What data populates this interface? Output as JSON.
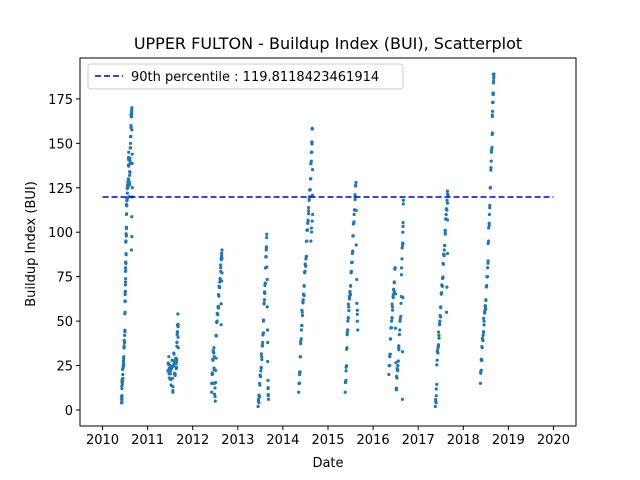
{
  "chart_data": {
    "type": "scatter",
    "title": "UPPER FULTON - Buildup Index (BUI), Scatterplot",
    "xlabel": "Date",
    "ylabel": "Buildup Index (BUI)",
    "xlim": [
      2009.5,
      2020.5
    ],
    "ylim": [
      -9,
      198
    ],
    "xticks": [
      2010,
      2011,
      2012,
      2013,
      2014,
      2015,
      2016,
      2017,
      2018,
      2019,
      2020
    ],
    "yticks": [
      0,
      25,
      50,
      75,
      100,
      125,
      150,
      175
    ],
    "grid": false,
    "legend_placement": "top-left",
    "colors": {
      "points": "#1f77b4",
      "percentile_line": "#0000cc"
    },
    "percentile": {
      "label": "90th percentile : 119.8118423461914",
      "value": 119.8118423461914,
      "x_start": 2010.0,
      "x_end": 2020.0
    },
    "series": [
      {
        "values_by_season": [
          {
            "year": 2010,
            "points": [
              [
                2010.42,
                4
              ],
              [
                2010.43,
                8
              ],
              [
                2010.43,
                12
              ],
              [
                2010.44,
                17
              ],
              [
                2010.45,
                20
              ],
              [
                2010.46,
                25
              ],
              [
                2010.47,
                30
              ],
              [
                2010.48,
                35
              ],
              [
                2010.49,
                42
              ],
              [
                2010.5,
                55
              ],
              [
                2010.5,
                65
              ],
              [
                2010.51,
                72
              ],
              [
                2010.51,
                80
              ],
              [
                2010.52,
                88
              ],
              [
                2010.52,
                95
              ],
              [
                2010.53,
                102
              ],
              [
                2010.53,
                110
              ],
              [
                2010.54,
                118
              ],
              [
                2010.55,
                122
              ],
              [
                2010.56,
                126
              ],
              [
                2010.57,
                130
              ],
              [
                2010.58,
                138
              ],
              [
                2010.58,
                145
              ],
              [
                2010.59,
                120
              ],
              [
                2010.6,
                132
              ],
              [
                2010.61,
                140
              ],
              [
                2010.62,
                150
              ],
              [
                2010.63,
                160
              ],
              [
                2010.64,
                165
              ],
              [
                2010.65,
                170
              ],
              [
                2010.66,
                125
              ],
              [
                2010.64,
                90
              ]
            ]
          },
          {
            "year": 2011,
            "points": [
              [
                2011.45,
                22
              ],
              [
                2011.47,
                30
              ],
              [
                2011.48,
                18
              ],
              [
                2011.5,
                25
              ],
              [
                2011.52,
                14
              ],
              [
                2011.54,
                28
              ],
              [
                2011.56,
                10
              ],
              [
                2011.58,
                32
              ],
              [
                2011.6,
                20
              ],
              [
                2011.62,
                26
              ],
              [
                2011.64,
                24
              ],
              [
                2011.65,
                38
              ],
              [
                2011.66,
                44
              ],
              [
                2011.67,
                54
              ],
              [
                2011.68,
                35
              ]
            ]
          },
          {
            "year": 2012,
            "points": [
              [
                2012.42,
                10
              ],
              [
                2012.43,
                20
              ],
              [
                2012.45,
                28
              ],
              [
                2012.47,
                35
              ],
              [
                2012.48,
                15
              ],
              [
                2012.5,
                5
              ],
              [
                2012.52,
                42
              ],
              [
                2012.54,
                50
              ],
              [
                2012.56,
                58
              ],
              [
                2012.58,
                64
              ],
              [
                2012.6,
                72
              ],
              [
                2012.62,
                80
              ],
              [
                2012.64,
                86
              ],
              [
                2012.65,
                90
              ],
              [
                2012.63,
                48
              ]
            ]
          },
          {
            "year": 2013,
            "points": [
              [
                2013.45,
                2
              ],
              [
                2013.47,
                8
              ],
              [
                2013.49,
                14
              ],
              [
                2013.51,
                22
              ],
              [
                2013.53,
                30
              ],
              [
                2013.55,
                38
              ],
              [
                2013.57,
                50
              ],
              [
                2013.59,
                62
              ],
              [
                2013.6,
                70
              ],
              [
                2013.62,
                80
              ],
              [
                2013.63,
                90
              ],
              [
                2013.64,
                97
              ],
              [
                2013.66,
                45
              ],
              [
                2013.67,
                12
              ],
              [
                2013.68,
                6
              ]
            ]
          },
          {
            "year": 2014,
            "points": [
              [
                2014.35,
                10
              ],
              [
                2014.37,
                20
              ],
              [
                2014.39,
                30
              ],
              [
                2014.41,
                45
              ],
              [
                2014.43,
                55
              ],
              [
                2014.45,
                62
              ],
              [
                2014.47,
                70
              ],
              [
                2014.49,
                78
              ],
              [
                2014.51,
                85
              ],
              [
                2014.53,
                95
              ],
              [
                2014.55,
                105
              ],
              [
                2014.57,
                112
              ],
              [
                2014.59,
                120
              ],
              [
                2014.61,
                130
              ],
              [
                2014.63,
                140
              ],
              [
                2014.64,
                150
              ],
              [
                2014.65,
                158
              ],
              [
                2014.66,
                110
              ],
              [
                2014.62,
                95
              ]
            ]
          },
          {
            "year": 2015,
            "points": [
              [
                2015.38,
                10
              ],
              [
                2015.4,
                22
              ],
              [
                2015.42,
                35
              ],
              [
                2015.44,
                50
              ],
              [
                2015.46,
                58
              ],
              [
                2015.48,
                64
              ],
              [
                2015.5,
                70
              ],
              [
                2015.52,
                78
              ],
              [
                2015.54,
                88
              ],
              [
                2015.56,
                98
              ],
              [
                2015.58,
                110
              ],
              [
                2015.6,
                120
              ],
              [
                2015.62,
                128
              ],
              [
                2015.64,
                60
              ],
              [
                2015.66,
                45
              ]
            ]
          },
          {
            "year": 2016,
            "points": [
              [
                2016.35,
                20
              ],
              [
                2016.37,
                30
              ],
              [
                2016.39,
                40
              ],
              [
                2016.41,
                50
              ],
              [
                2016.43,
                58
              ],
              [
                2016.45,
                65
              ],
              [
                2016.47,
                72
              ],
              [
                2016.49,
                80
              ],
              [
                2016.51,
                12
              ],
              [
                2016.53,
                18
              ],
              [
                2016.55,
                25
              ],
              [
                2016.57,
                35
              ],
              [
                2016.59,
                45
              ],
              [
                2016.62,
                60
              ],
              [
                2016.64,
                85
              ],
              [
                2016.66,
                100
              ],
              [
                2016.67,
                118
              ],
              [
                2016.65,
                6
              ]
            ]
          },
          {
            "year": 2017,
            "points": [
              [
                2017.38,
                2
              ],
              [
                2017.4,
                8
              ],
              [
                2017.42,
                28
              ],
              [
                2017.44,
                35
              ],
              [
                2017.46,
                42
              ],
              [
                2017.48,
                50
              ],
              [
                2017.5,
                58
              ],
              [
                2017.52,
                66
              ],
              [
                2017.54,
                74
              ],
              [
                2017.56,
                82
              ],
              [
                2017.58,
                90
              ],
              [
                2017.6,
                100
              ],
              [
                2017.62,
                110
              ],
              [
                2017.64,
                118
              ],
              [
                2017.66,
                121
              ],
              [
                2017.63,
                55
              ]
            ]
          },
          {
            "year": 2018,
            "points": [
              [
                2018.38,
                15
              ],
              [
                2018.4,
                28
              ],
              [
                2018.42,
                35
              ],
              [
                2018.44,
                42
              ],
              [
                2018.46,
                50
              ],
              [
                2018.48,
                56
              ],
              [
                2018.5,
                62
              ],
              [
                2018.52,
                70
              ],
              [
                2018.54,
                80
              ],
              [
                2018.56,
                95
              ],
              [
                2018.58,
                110
              ],
              [
                2018.6,
                125
              ],
              [
                2018.62,
                140
              ],
              [
                2018.64,
                155
              ],
              [
                2018.65,
                168
              ],
              [
                2018.66,
                178
              ],
              [
                2018.67,
                184
              ],
              [
                2018.68,
                189
              ]
            ]
          }
        ]
      }
    ]
  }
}
